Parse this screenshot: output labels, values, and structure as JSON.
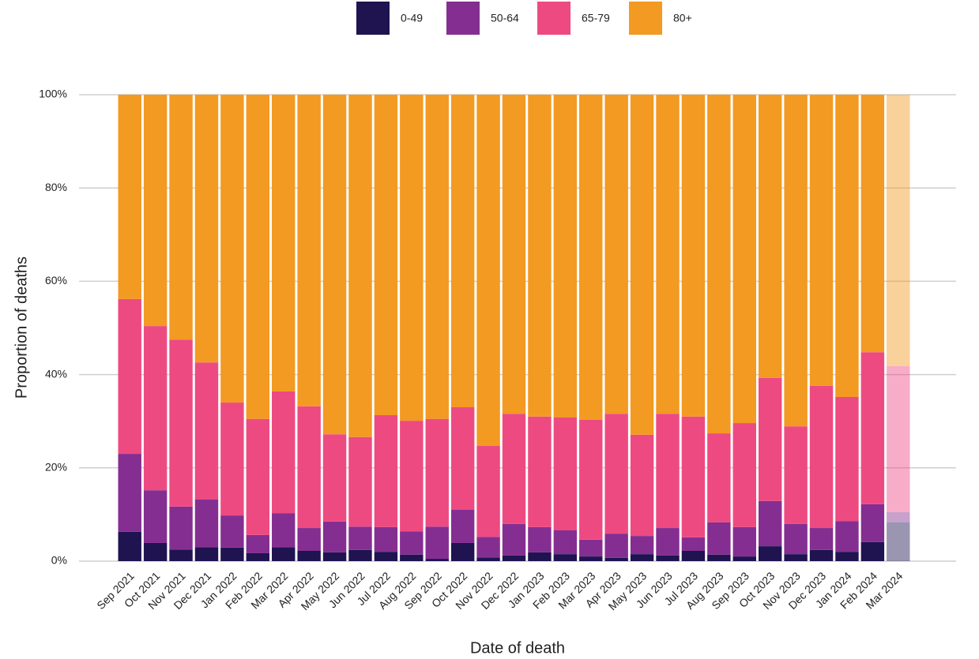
{
  "chart_data": {
    "type": "stacked_bar",
    "x_label": "Date of death",
    "y_label": "Proportion of deaths",
    "categories": [
      "Sep 2021",
      "Oct 2021",
      "Nov 2021",
      "Dec 2021",
      "Jan 2022",
      "Feb 2022",
      "Mar 2022",
      "Apr 2022",
      "May 2022",
      "Jun 2022",
      "Jul 2022",
      "Aug 2022",
      "Sep 2022",
      "Oct 2022",
      "Nov 2022",
      "Dec 2022",
      "Jan 2023",
      "Feb 2023",
      "Mar 2023",
      "Apr 2023",
      "May 2023",
      "Jun 2023",
      "Jul 2023",
      "Aug 2023",
      "Sep 2023",
      "Oct 2023",
      "Nov 2023",
      "Dec 2023",
      "Jan 2024",
      "Feb 2024",
      "Mar 2024"
    ],
    "series": [
      {
        "name": "0-49",
        "color": "#1f1350",
        "values": [
          6.3,
          3.9,
          2.5,
          3.0,
          2.9,
          1.7,
          3.0,
          2.2,
          1.9,
          2.4,
          2.0,
          1.4,
          0.5,
          3.9,
          0.8,
          1.2,
          1.9,
          1.5,
          1.0,
          0.7,
          1.5,
          1.2,
          2.2,
          1.4,
          1.0,
          3.2,
          1.5,
          2.4,
          2.0,
          4.1,
          8.3
        ]
      },
      {
        "name": "50-64",
        "color": "#852e91",
        "values": [
          16.7,
          11.3,
          9.2,
          10.2,
          6.9,
          3.9,
          7.3,
          4.9,
          6.6,
          5.0,
          5.3,
          5.0,
          6.9,
          7.1,
          4.4,
          6.8,
          5.4,
          5.1,
          3.6,
          5.2,
          3.9,
          5.9,
          2.9,
          6.9,
          6.3,
          9.7,
          6.5,
          4.7,
          6.6,
          8.1,
          2.2
        ]
      },
      {
        "name": "65-79",
        "color": "#ee4a82",
        "values": [
          33.2,
          35.2,
          35.8,
          29.4,
          24.2,
          24.9,
          26.1,
          26.1,
          18.7,
          19.2,
          24.0,
          23.7,
          23.1,
          22.0,
          19.5,
          23.6,
          23.7,
          24.2,
          25.7,
          25.7,
          21.7,
          24.5,
          25.9,
          19.1,
          22.3,
          26.4,
          20.9,
          30.5,
          26.6,
          32.6,
          31.3
        ]
      },
      {
        "name": "80+",
        "color": "#f29a22",
        "values": [
          43.8,
          49.6,
          52.5,
          57.4,
          66.0,
          69.5,
          63.6,
          66.8,
          72.8,
          73.4,
          68.7,
          69.9,
          69.5,
          67.0,
          75.3,
          68.4,
          69.0,
          69.2,
          69.7,
          68.4,
          72.9,
          68.4,
          69.0,
          72.6,
          70.4,
          60.7,
          71.1,
          62.4,
          64.8,
          55.2,
          58.2
        ]
      }
    ],
    "ylim": [
      0,
      100
    ],
    "yticks": [
      {
        "value": 0,
        "label": "0%"
      },
      {
        "value": 20,
        "label": "20%"
      },
      {
        "value": 40,
        "label": "40%"
      },
      {
        "value": 60,
        "label": "60%"
      },
      {
        "value": 80,
        "label": "80%"
      },
      {
        "value": 100,
        "label": "100%"
      }
    ],
    "grid": true,
    "legend": "top"
  }
}
